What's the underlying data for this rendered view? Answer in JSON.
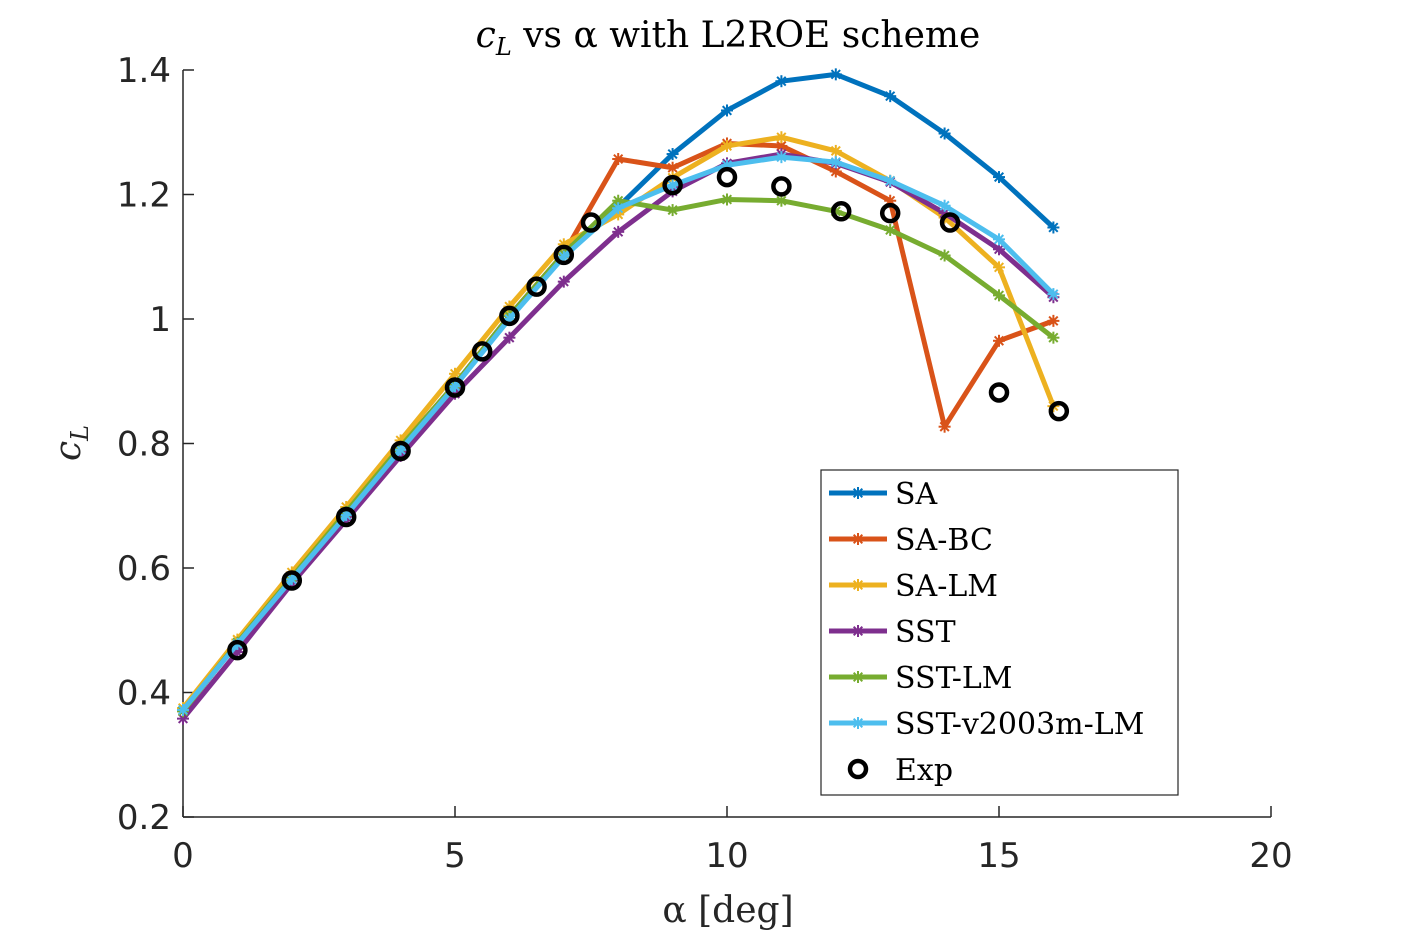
{
  "chart_data": {
    "type": "line",
    "title": {
      "var": "c",
      "sub": "L",
      "rest": " vs α with L2ROE scheme"
    },
    "xlabel": "α [deg]",
    "ylabel": {
      "var": "c",
      "sub": "L"
    },
    "xlim": [
      0,
      20
    ],
    "ylim": [
      0.2,
      1.4
    ],
    "xticks": [
      0,
      5,
      10,
      15,
      20
    ],
    "xtick_labels": [
      "0",
      "5",
      "10",
      "15",
      "20"
    ],
    "yticks": [
      0.2,
      0.4,
      0.6,
      0.8,
      1.0,
      1.2,
      1.4
    ],
    "ytick_labels": [
      "0.2",
      "0.4",
      "0.6",
      "0.8",
      "1",
      "1.2",
      "1.4"
    ],
    "grid": false,
    "legend_position": "lower-right",
    "series": [
      {
        "name": "SA",
        "color": "#0072BD",
        "marker": "star",
        "x": [
          0,
          1,
          2,
          3,
          4,
          5,
          6,
          7,
          8,
          9,
          10,
          11,
          12,
          13,
          14,
          15,
          16
        ],
        "y": [
          0.37,
          0.48,
          0.585,
          0.69,
          0.795,
          0.895,
          1.005,
          1.105,
          1.18,
          1.265,
          1.335,
          1.382,
          1.393,
          1.358,
          1.298,
          1.228,
          1.147
        ]
      },
      {
        "name": "SA-BC",
        "color": "#D95319",
        "marker": "star",
        "x": [
          0,
          1,
          2,
          3,
          4,
          5,
          6,
          7,
          8,
          9,
          10,
          11,
          12,
          13,
          14,
          15,
          16
        ],
        "y": [
          0.37,
          0.48,
          0.585,
          0.69,
          0.795,
          0.895,
          1.005,
          1.105,
          1.257,
          1.243,
          1.282,
          1.278,
          1.237,
          1.19,
          0.827,
          0.965,
          0.997
        ]
      },
      {
        "name": "SA-LM",
        "color": "#EDB120",
        "marker": "star",
        "x": [
          0,
          1,
          2,
          3,
          4,
          5,
          6,
          7,
          8,
          9,
          10,
          11,
          12,
          13,
          14,
          15,
          16
        ],
        "y": [
          0.375,
          0.485,
          0.593,
          0.698,
          0.805,
          0.912,
          1.02,
          1.12,
          1.168,
          1.227,
          1.278,
          1.292,
          1.27,
          1.222,
          1.163,
          1.083,
          0.86
        ]
      },
      {
        "name": "SST",
        "color": "#7E2F8E",
        "marker": "star",
        "x": [
          0,
          1,
          2,
          3,
          4,
          5,
          6,
          7,
          8,
          9,
          10,
          11,
          12,
          13,
          14,
          15,
          16
        ],
        "y": [
          0.358,
          0.465,
          0.575,
          0.677,
          0.78,
          0.88,
          0.97,
          1.06,
          1.14,
          1.205,
          1.25,
          1.265,
          1.25,
          1.22,
          1.17,
          1.112,
          1.035
        ]
      },
      {
        "name": "SST-LM",
        "color": "#77AC30",
        "marker": "star",
        "x": [
          0,
          1,
          2,
          3,
          4,
          5,
          6,
          7,
          8,
          9,
          10,
          11,
          12,
          13,
          14,
          15,
          16
        ],
        "y": [
          0.37,
          0.48,
          0.585,
          0.69,
          0.795,
          0.895,
          1.005,
          1.105,
          1.19,
          1.175,
          1.192,
          1.19,
          1.173,
          1.143,
          1.102,
          1.038,
          0.97
        ]
      },
      {
        "name": "SST-v2003m-LM",
        "color": "#4DBEEE",
        "marker": "star",
        "x": [
          0,
          1,
          2,
          3,
          4,
          5,
          6,
          7,
          8,
          9,
          10,
          11,
          12,
          13,
          14,
          15,
          16
        ],
        "y": [
          0.372,
          0.478,
          0.582,
          0.685,
          0.79,
          0.892,
          1.0,
          1.1,
          1.178,
          1.215,
          1.247,
          1.26,
          1.252,
          1.222,
          1.182,
          1.128,
          1.04
        ]
      },
      {
        "name": "Exp",
        "color": "#000000",
        "marker": "circle",
        "line": false,
        "x": [
          1,
          2,
          3,
          4,
          5,
          5.5,
          6,
          6.5,
          7,
          7.5,
          9,
          10,
          11,
          12.1,
          13,
          14.1,
          15,
          16.1
        ],
        "y": [
          0.468,
          0.58,
          0.682,
          0.788,
          0.89,
          0.948,
          1.005,
          1.052,
          1.103,
          1.155,
          1.215,
          1.228,
          1.213,
          1.173,
          1.17,
          1.155,
          0.882,
          0.852
        ]
      }
    ]
  }
}
